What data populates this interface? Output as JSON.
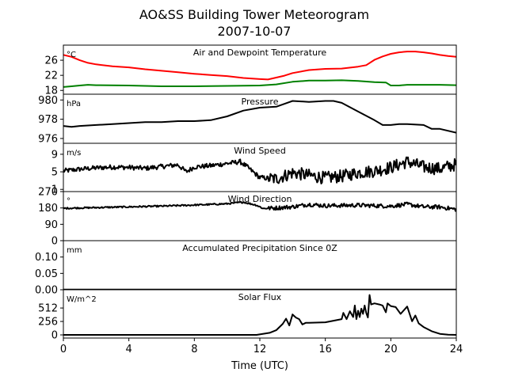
{
  "title": "AO&SS Building Tower Meteorogram",
  "subtitle": "2007-10-07",
  "chart_data": {
    "type": "line",
    "xlabel": "Time (UTC)",
    "xlim": [
      0,
      24
    ],
    "xticks": [
      0,
      4,
      8,
      12,
      16,
      20,
      24
    ],
    "panels": [
      {
        "title": "Air and Dewpoint Temperature",
        "unit": "°C",
        "ylim": [
          17,
          30
        ],
        "yticks": [
          18,
          22,
          26
        ],
        "series": [
          {
            "color": "#ff0000",
            "stroke": 2,
            "x": [
              0,
              0.5,
              1,
              1.5,
              2,
              3,
              4,
              5,
              6,
              7,
              8,
              9,
              10,
              11,
              12,
              12.5,
              13,
              13.5,
              14,
              15,
              16,
              17,
              18,
              18.5,
              19,
              19.5,
              20,
              20.5,
              21,
              21.5,
              22,
              22.5,
              23,
              23.5,
              24
            ],
            "y": [
              27.4,
              26.9,
              26.0,
              25.3,
              24.9,
              24.4,
              24.1,
              23.6,
              23.2,
              22.8,
              22.4,
              22.1,
              21.8,
              21.3,
              21.0,
              20.9,
              21.4,
              21.9,
              22.6,
              23.4,
              23.7,
              23.8,
              24.3,
              24.7,
              26.1,
              27.0,
              27.7,
              28.1,
              28.3,
              28.3,
              28.1,
              27.8,
              27.4,
              27.1,
              26.9
            ]
          },
          {
            "color": "#008000",
            "stroke": 2,
            "x": [
              0,
              0.5,
              1,
              1.5,
              2,
              4,
              6,
              8,
              10,
              12,
              13,
              14,
              15,
              16,
              17,
              18,
              19,
              19.7,
              20,
              20.5,
              21,
              22,
              23,
              24
            ],
            "y": [
              18.9,
              19.1,
              19.3,
              19.5,
              19.4,
              19.3,
              19.1,
              19.1,
              19.2,
              19.3,
              19.6,
              20.3,
              20.6,
              20.6,
              20.7,
              20.5,
              20.2,
              20.1,
              19.3,
              19.3,
              19.5,
              19.5,
              19.5,
              19.4
            ]
          }
        ]
      },
      {
        "title": "Pressure",
        "unit": "hPa",
        "ylim": [
          975.5,
          980.6
        ],
        "yticks": [
          976,
          978,
          980
        ],
        "series": [
          {
            "color": "#000000",
            "stroke": 2,
            "x": [
              0,
              0.5,
              1,
              2,
              3,
              4,
              5,
              6,
              7,
              8,
              9,
              10,
              11,
              12,
              13,
              13.5,
              14,
              15,
              16,
              16.5,
              17,
              18,
              19,
              19.5,
              20,
              20.5,
              21,
              22,
              22.5,
              23,
              24
            ],
            "y": [
              977.3,
              977.2,
              977.3,
              977.4,
              977.5,
              977.6,
              977.7,
              977.7,
              977.8,
              977.8,
              977.9,
              978.3,
              978.9,
              979.2,
              979.3,
              979.6,
              979.9,
              979.8,
              979.9,
              979.9,
              979.7,
              978.8,
              977.9,
              977.4,
              977.4,
              977.5,
              977.5,
              977.4,
              977.0,
              977.0,
              976.6
            ]
          }
        ]
      },
      {
        "title": "Wind Speed",
        "unit": "m/s",
        "ylim": [
          0.5,
          11.5
        ],
        "yticks": [
          1,
          5,
          9
        ],
        "series": [
          {
            "color": "#000000",
            "stroke": 2,
            "jitter": 0.9,
            "x": [
              0,
              1,
              2,
              3,
              4,
              5,
              6,
              7,
              7.5,
              8,
              9,
              10,
              10.8,
              11.2,
              12,
              13,
              14,
              15,
              16,
              17,
              18,
              19,
              20,
              21,
              22,
              23,
              24
            ],
            "y": [
              5.2,
              5.6,
              5.9,
              6.1,
              6.0,
              5.8,
              6.2,
              6.6,
              5.0,
              6.1,
              6.4,
              6.9,
              7.3,
              6.2,
              3.7,
              3.4,
              4.8,
              4.2,
              3.6,
              4.0,
              4.8,
              5.2,
              6.0,
              7.3,
              6.1,
              5.7,
              6.7
            ]
          }
        ]
      },
      {
        "title": "Wind Direction",
        "unit": "°",
        "ylim": [
          0,
          270
        ],
        "yticks": [
          0,
          90,
          180,
          270
        ],
        "series": [
          {
            "color": "#000000",
            "stroke": 2,
            "jitter": 7,
            "x": [
              0,
              2,
              4,
              6,
              8,
              10,
              11,
              11.8,
              12.2,
              13,
              14,
              15,
              16,
              18,
              20,
              21,
              22,
              23,
              24
            ],
            "y": [
              178,
              182,
              186,
              190,
              196,
              203,
              212,
              195,
              177,
              180,
              186,
              200,
              192,
              195,
              190,
              200,
              186,
              185,
              172
            ]
          }
        ]
      },
      {
        "title": "Accumulated Precipitation Since 0Z",
        "unit": "mm",
        "ylim": [
          0,
          0.15
        ],
        "yticks": [
          0.0,
          0.05,
          0.1
        ],
        "series": [
          {
            "color": "#000000",
            "stroke": 2.5,
            "x": [
              0,
              24
            ],
            "y": [
              0,
              0
            ]
          }
        ]
      },
      {
        "title": "Solar Flux",
        "unit": "W/m^2",
        "ylim": [
          -60,
          860
        ],
        "yticks": [
          0,
          256,
          512
        ],
        "series": [
          {
            "color": "#000000",
            "stroke": 2,
            "x": [
              0,
              11.8,
              12.6,
              13,
              13.4,
              13.6,
              13.8,
              14.0,
              14.2,
              14.4,
              14.6,
              14.8,
              15,
              16,
              17,
              17.1,
              17.3,
              17.5,
              17.7,
              17.8,
              17.9,
              18.0,
              18.1,
              18.2,
              18.3,
              18.4,
              18.5,
              18.6,
              18.7,
              18.8,
              19,
              19.3,
              19.5,
              19.7,
              19.8,
              20,
              20.3,
              20.6,
              21,
              21.3,
              21.5,
              21.7,
              22,
              22.5,
              23,
              23.5,
              24
            ],
            "y": [
              0,
              0,
              40,
              90,
              210,
              310,
              180,
              390,
              330,
              300,
              200,
              230,
              230,
              240,
              300,
              420,
              300,
              450,
              340,
              560,
              300,
              460,
              340,
              500,
              400,
              560,
              420,
              330,
              760,
              580,
              600,
              580,
              560,
              430,
              600,
              550,
              530,
              400,
              540,
              260,
              370,
              220,
              150,
              70,
              20,
              5,
              0
            ]
          }
        ]
      }
    ]
  }
}
